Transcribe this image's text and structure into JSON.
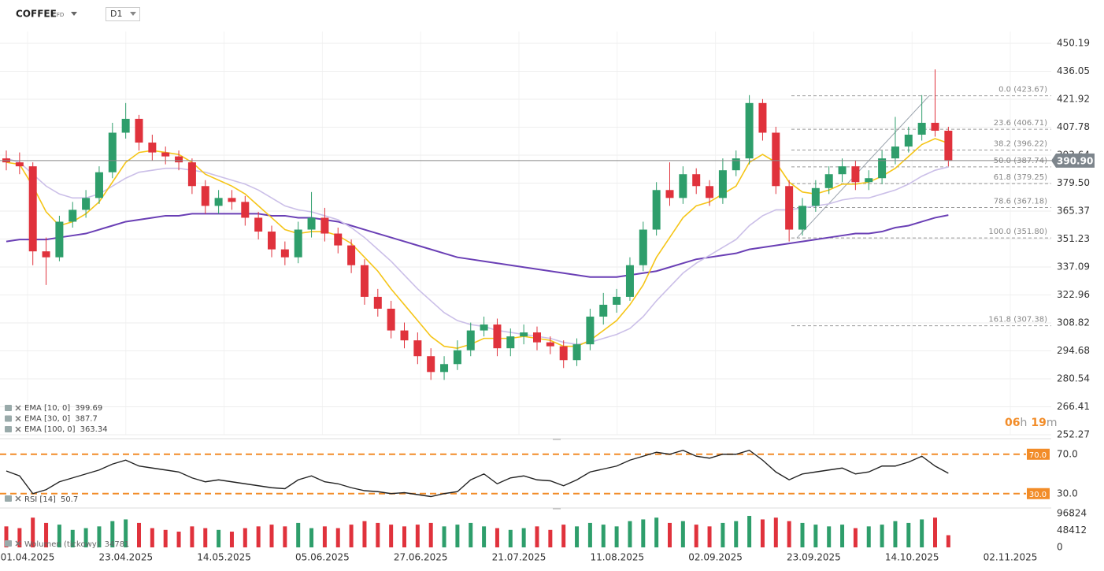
{
  "header": {
    "symbol": "COFFEE",
    "tag": "CFD",
    "timeframe": "D1"
  },
  "chart_data": [
    {
      "type": "candlestick",
      "up_color": "#2e9e6b",
      "down_color": "#e0323c",
      "grid": true,
      "ylim": [
        252.27,
        450.19
      ],
      "yticks": [
        450.19,
        436.05,
        421.92,
        407.78,
        393.64,
        {
          "value": 379.5,
          "label": "379.50"
        },
        365.37,
        351.23,
        337.09,
        322.96,
        308.82,
        294.68,
        280.54,
        266.41,
        252.27
      ],
      "dates": [
        "01.04.2025",
        "23.04.2025",
        "14.05.2025",
        "05.06.2025",
        "27.06.2025",
        "21.07.2025",
        "11.08.2025",
        "02.09.2025",
        "23.09.2025",
        "14.10.2025",
        "02.11.2025"
      ],
      "open": [
        392,
        390,
        388,
        345,
        342,
        360,
        366,
        372,
        385,
        405,
        412,
        400,
        395,
        393,
        390,
        378,
        368,
        372,
        370,
        362,
        355,
        346,
        342,
        356,
        362,
        354,
        348,
        338,
        322,
        316,
        305,
        300,
        292,
        284,
        288,
        295,
        305,
        308,
        296,
        302,
        304,
        299,
        297,
        290,
        298,
        312,
        318,
        322,
        338,
        356,
        376,
        372,
        384,
        378,
        372,
        386,
        392,
        420,
        405,
        378,
        356,
        368,
        377,
        384,
        388,
        380,
        382,
        392,
        398,
        404,
        410,
        406
      ],
      "high": [
        396,
        395,
        390,
        352,
        363,
        370,
        376,
        388,
        410,
        420,
        414,
        404,
        398,
        396,
        392,
        381,
        376,
        376,
        373,
        365,
        358,
        350,
        360,
        375,
        367,
        357,
        351,
        341,
        326,
        320,
        309,
        304,
        296,
        292,
        300,
        309,
        312,
        311,
        306,
        308,
        307,
        302,
        300,
        301,
        316,
        324,
        326,
        342,
        360,
        380,
        390,
        388,
        387,
        381,
        392,
        396,
        424,
        422,
        408,
        381,
        372,
        381,
        388,
        392,
        391,
        386,
        396,
        413,
        408,
        424,
        437,
        408
      ],
      "low": [
        386,
        384,
        338,
        328,
        340,
        357,
        362,
        369,
        382,
        402,
        396,
        391,
        389,
        386,
        374,
        364,
        364,
        366,
        358,
        351,
        342,
        338,
        339,
        352,
        350,
        344,
        334,
        318,
        312,
        301,
        296,
        288,
        280,
        280,
        285,
        292,
        302,
        292,
        292,
        298,
        295,
        293,
        286,
        287,
        295,
        308,
        314,
        320,
        335,
        353,
        368,
        369,
        374,
        368,
        369,
        383,
        389,
        401,
        374,
        350,
        353,
        365,
        374,
        380,
        376,
        376,
        379,
        389,
        395,
        401,
        403,
        388
      ],
      "close": [
        390,
        388,
        345,
        342,
        360,
        366,
        372,
        385,
        405,
        412,
        400,
        395,
        393,
        390,
        378,
        368,
        372,
        370,
        362,
        355,
        346,
        342,
        356,
        362,
        354,
        348,
        338,
        322,
        316,
        305,
        300,
        292,
        284,
        288,
        295,
        305,
        308,
        296,
        302,
        304,
        299,
        297,
        290,
        298,
        312,
        318,
        322,
        338,
        356,
        376,
        372,
        384,
        378,
        372,
        386,
        392,
        420,
        405,
        378,
        356,
        368,
        377,
        384,
        388,
        380,
        382,
        392,
        398,
        404,
        410,
        406,
        390.9
      ],
      "last_price": {
        "value": 390.9,
        "label": "390.90"
      },
      "overlays": [
        {
          "name": "EMA [100, 0]",
          "color": "#6a3fb5",
          "values": [
            350,
            351,
            351,
            351,
            352,
            353,
            354,
            356,
            358,
            360,
            361,
            362,
            363,
            363,
            364,
            364,
            364,
            364,
            364,
            364,
            363,
            363,
            362,
            362,
            361,
            360,
            358,
            356,
            354,
            352,
            350,
            348,
            346,
            344,
            342,
            341,
            340,
            339,
            338,
            337,
            336,
            335,
            334,
            333,
            332,
            332,
            332,
            333,
            334,
            335,
            337,
            339,
            341,
            342,
            343,
            344,
            346,
            347,
            348,
            349,
            350,
            351,
            352,
            353,
            354,
            354,
            355,
            357,
            358,
            360,
            362,
            363.34
          ]
        },
        {
          "name": "EMA [30, 0]",
          "color": "#cbbfe8",
          "values": [
            392,
            390,
            384,
            378,
            374,
            372,
            372,
            374,
            378,
            382,
            385,
            386,
            387,
            387,
            386,
            385,
            383,
            381,
            379,
            376,
            372,
            368,
            366,
            365,
            363,
            361,
            357,
            352,
            346,
            340,
            333,
            326,
            320,
            314,
            310,
            308,
            307,
            305,
            304,
            303,
            302,
            301,
            299,
            298,
            299,
            301,
            303,
            306,
            312,
            320,
            327,
            334,
            339,
            343,
            347,
            351,
            358,
            363,
            366,
            366,
            367,
            368,
            369,
            371,
            372,
            372,
            374,
            376,
            379,
            383,
            386,
            387.7
          ]
        },
        {
          "name": "EMA [10, 0]",
          "color": "#f5c518",
          "values": [
            390,
            389,
            378,
            365,
            358,
            360,
            364,
            370,
            380,
            390,
            395,
            396,
            395,
            394,
            390,
            384,
            381,
            378,
            374,
            368,
            362,
            356,
            354,
            355,
            355,
            353,
            349,
            342,
            335,
            326,
            318,
            310,
            302,
            297,
            296,
            298,
            301,
            301,
            301,
            302,
            301,
            300,
            297,
            297,
            300,
            305,
            310,
            318,
            328,
            342,
            352,
            362,
            368,
            370,
            374,
            378,
            390,
            394,
            390,
            380,
            375,
            374,
            376,
            379,
            379,
            380,
            383,
            387,
            393,
            399,
            402,
            399.69
          ]
        }
      ],
      "fibonacci": [
        {
          "label": "0.0 (423.67)",
          "value": 423.67
        },
        {
          "label": "23.6 (406.71)",
          "value": 406.71
        },
        {
          "label": "38.2 (396.22)",
          "value": 396.22
        },
        {
          "label": "50.0 (387.74)",
          "value": 387.74
        },
        {
          "label": "61.8 (379.25)",
          "value": 379.25
        },
        {
          "label": "78.6 (367.18)",
          "value": 367.18
        },
        {
          "label": "100.0 (351.80)",
          "value": 351.8
        },
        {
          "label": "161.8 (307.38)",
          "value": 307.38
        }
      ],
      "countdown": [
        "06",
        "h",
        "19",
        "m"
      ]
    },
    {
      "type": "line",
      "name": "RSI [14]",
      "color": "#222222",
      "level_color": "#f28c28",
      "ylim": [
        17,
        85
      ],
      "levels": [
        {
          "value": 70,
          "label": "70.0"
        },
        {
          "value": 30,
          "label": "30.0"
        }
      ],
      "values": [
        53,
        48,
        30,
        34,
        42,
        46,
        50,
        54,
        60,
        64,
        58,
        56,
        54,
        52,
        46,
        42,
        44,
        42,
        40,
        38,
        36,
        35,
        44,
        48,
        42,
        40,
        36,
        33,
        32,
        30,
        31,
        29,
        27,
        30,
        32,
        44,
        50,
        40,
        46,
        48,
        44,
        43,
        38,
        44,
        52,
        55,
        58,
        64,
        68,
        72,
        70,
        74,
        68,
        66,
        70,
        70,
        74,
        64,
        52,
        44,
        50,
        52,
        54,
        56,
        50,
        52,
        58,
        58,
        62,
        68,
        58,
        50.7
      ]
    },
    {
      "type": "bar",
      "name": "Wolumen (tickowy)",
      "ylim": [
        0,
        96824
      ],
      "yticks": [
        96824,
        48412,
        0
      ],
      "values": [
        60000,
        55000,
        85000,
        70000,
        65000,
        50000,
        55000,
        60000,
        75000,
        80000,
        70000,
        55000,
        50000,
        45000,
        60000,
        55000,
        50000,
        45000,
        55000,
        60000,
        65000,
        60000,
        70000,
        55000,
        60000,
        55000,
        65000,
        75000,
        70000,
        65000,
        60000,
        65000,
        70000,
        60000,
        65000,
        70000,
        60000,
        55000,
        50000,
        55000,
        60000,
        50000,
        65000,
        60000,
        70000,
        65000,
        60000,
        75000,
        80000,
        85000,
        70000,
        75000,
        65000,
        60000,
        70000,
        75000,
        90000,
        80000,
        85000,
        75000,
        70000,
        65000,
        60000,
        65000,
        55000,
        60000,
        65000,
        75000,
        70000,
        80000,
        85000,
        34781
      ]
    }
  ]
}
